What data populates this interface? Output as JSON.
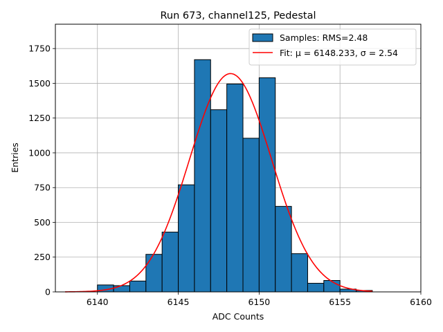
{
  "chart_data": {
    "type": "bar",
    "title": "Run 673, channel125, Pedestal",
    "xlabel": "ADC Counts",
    "ylabel": "Entries",
    "xlim": [
      6137.4,
      6160.0
    ],
    "ylim": [
      0,
      1925
    ],
    "xticks": [
      6140,
      6145,
      6150,
      6155,
      6160
    ],
    "yticks": [
      0,
      250,
      500,
      750,
      1000,
      1250,
      1500,
      1750
    ],
    "grid": true,
    "legend_position": "top-right",
    "bin_width": 1,
    "bins": [
      {
        "left": 6140,
        "value": 50
      },
      {
        "left": 6141,
        "value": 45
      },
      {
        "left": 6142,
        "value": 78
      },
      {
        "left": 6143,
        "value": 270
      },
      {
        "left": 6144,
        "value": 430
      },
      {
        "left": 6145,
        "value": 770
      },
      {
        "left": 6146,
        "value": 1670
      },
      {
        "left": 6147,
        "value": 1310
      },
      {
        "left": 6148,
        "value": 1495
      },
      {
        "left": 6149,
        "value": 1105
      },
      {
        "left": 6150,
        "value": 1540
      },
      {
        "left": 6151,
        "value": 615
      },
      {
        "left": 6152,
        "value": 275
      },
      {
        "left": 6153,
        "value": 62
      },
      {
        "left": 6154,
        "value": 82
      },
      {
        "left": 6155,
        "value": 20
      },
      {
        "left": 6156,
        "value": 10
      }
    ],
    "fit": {
      "type": "gaussian",
      "mu": 6148.233,
      "sigma": 2.54,
      "amplitude": 1570,
      "x_range": [
        6138,
        6157
      ]
    },
    "series": [
      {
        "name": "Samples: RMS=2.48",
        "type": "histogram",
        "color": "#1f77b4"
      },
      {
        "name": "Fit: μ = 6148.233, σ = 2.54",
        "type": "line",
        "color": "#ff0000"
      }
    ]
  }
}
